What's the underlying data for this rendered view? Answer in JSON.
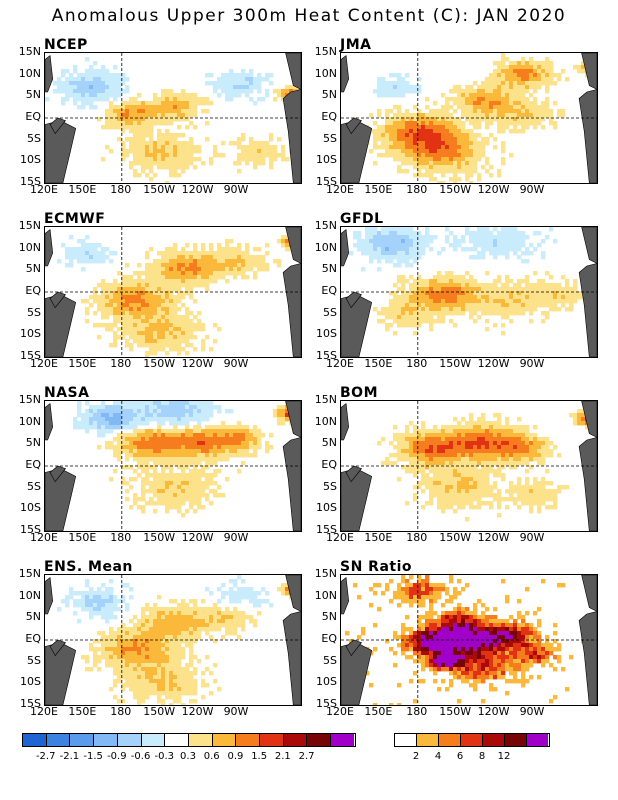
{
  "title": "Anomalous Upper 300m Heat Content (C): JAN 2020",
  "panels": [
    {
      "key": "ncep",
      "name": "NCEP"
    },
    {
      "key": "jma",
      "name": "JMA"
    },
    {
      "key": "ecmwf",
      "name": "ECMWF"
    },
    {
      "key": "gfdl",
      "name": "GFDL"
    },
    {
      "key": "nasa",
      "name": "NASA"
    },
    {
      "key": "bom",
      "name": "BOM"
    },
    {
      "key": "ens",
      "name": "ENS. Mean"
    },
    {
      "key": "sn",
      "name": "SN Ratio"
    }
  ],
  "lat_labels": [
    "15N",
    "10N",
    "5N",
    "EQ",
    "5S",
    "10S",
    "15S"
  ],
  "lon_labels": [
    "120E",
    "150E",
    "180",
    "150W",
    "120W",
    "90W"
  ],
  "anomaly_colorbar": {
    "labels": [
      "-2.7",
      "-2.1",
      "-1.5",
      "-0.9",
      "-0.6",
      "-0.3",
      "0.3",
      "0.6",
      "0.9",
      "1.5",
      "2.1",
      "2.7"
    ],
    "colors": [
      "#1e64d2",
      "#3c82e1",
      "#5a9bec",
      "#82b9f5",
      "#a5d2fa",
      "#c8ecfc",
      "#ffffff",
      "#fde28c",
      "#fbb93c",
      "#f57d1e",
      "#e13214",
      "#aa0a0a",
      "#780505",
      "#a000c8"
    ]
  },
  "snr_colorbar": {
    "labels": [
      "2",
      "4",
      "6",
      "8",
      "12"
    ],
    "colors": [
      "#ffffff",
      "#fbb93c",
      "#f57d1e",
      "#e13214",
      "#aa0a0a",
      "#780505",
      "#a000c8"
    ]
  },
  "chart_data": {
    "type": "map",
    "title": "Anomalous Upper 300m Heat Content (C): JAN 2020",
    "region": {
      "lon": [
        "120E",
        "80W"
      ],
      "lat": [
        "15S",
        "15N"
      ]
    },
    "panels": [
      "NCEP",
      "JMA",
      "ECMWF",
      "GFDL",
      "NASA",
      "BOM",
      "ENS. Mean",
      "SN Ratio"
    ],
    "dashed_reference_lines": [
      "EQ",
      "180"
    ]
  }
}
